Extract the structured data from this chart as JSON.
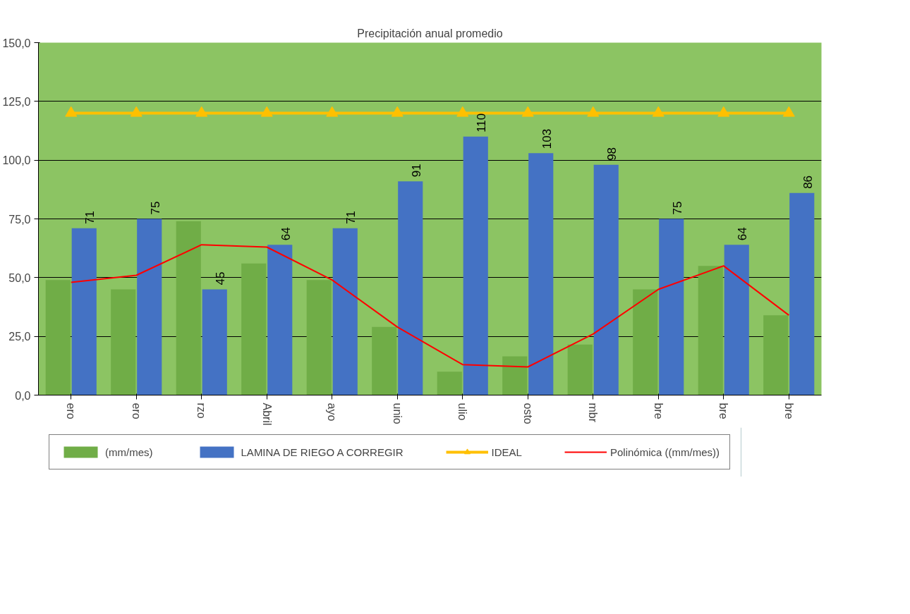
{
  "chart_data": {
    "type": "bar",
    "title": "Precipitación anual promedio",
    "categories": [
      "ero",
      "ero",
      "rzo",
      "Abril",
      "ayo",
      "unio",
      "ulio",
      "osto",
      "mbr",
      "bre",
      "bre",
      "bre"
    ],
    "series": [
      {
        "name": "(mm/mes)",
        "color": "#70ad47",
        "values": [
          49,
          45,
          74,
          56,
          49,
          29,
          10,
          16.5,
          21.5,
          45,
          55,
          34
        ]
      },
      {
        "name": "LAMINA DE RIEGO A CORREGIR",
        "color": "#4472c4",
        "values": [
          71,
          75,
          45,
          64,
          71,
          91,
          110,
          103,
          98,
          75,
          64,
          86
        ],
        "value_labels": [
          "71",
          "75",
          "45",
          "64",
          "71",
          "91",
          "110",
          "103",
          "98",
          "75",
          "64",
          "86"
        ]
      },
      {
        "name": "IDEAL",
        "type": "line",
        "color": "#ffc000",
        "marker": "triangle",
        "values": [
          120,
          120,
          120,
          120,
          120,
          120,
          120,
          120,
          120,
          120,
          120,
          120
        ]
      },
      {
        "name": "Polinómica ((mm/mes))",
        "type": "line",
        "color": "#ff0000",
        "marker": "none",
        "values": [
          48,
          51,
          64,
          63,
          49,
          29,
          13,
          12,
          26,
          45,
          55,
          34
        ]
      }
    ],
    "ylim": [
      0,
      150
    ],
    "yticks": [
      {
        "value": 0,
        "label": "0,0"
      },
      {
        "value": 25,
        "label": "25,0"
      },
      {
        "value": 50,
        "label": "50,0"
      },
      {
        "value": 75,
        "label": "75,0"
      },
      {
        "value": 100,
        "label": "100,0"
      },
      {
        "value": 125,
        "label": "125,0"
      },
      {
        "value": 150,
        "label": "150,0"
      }
    ],
    "grid": "y",
    "legend": "bottom"
  }
}
